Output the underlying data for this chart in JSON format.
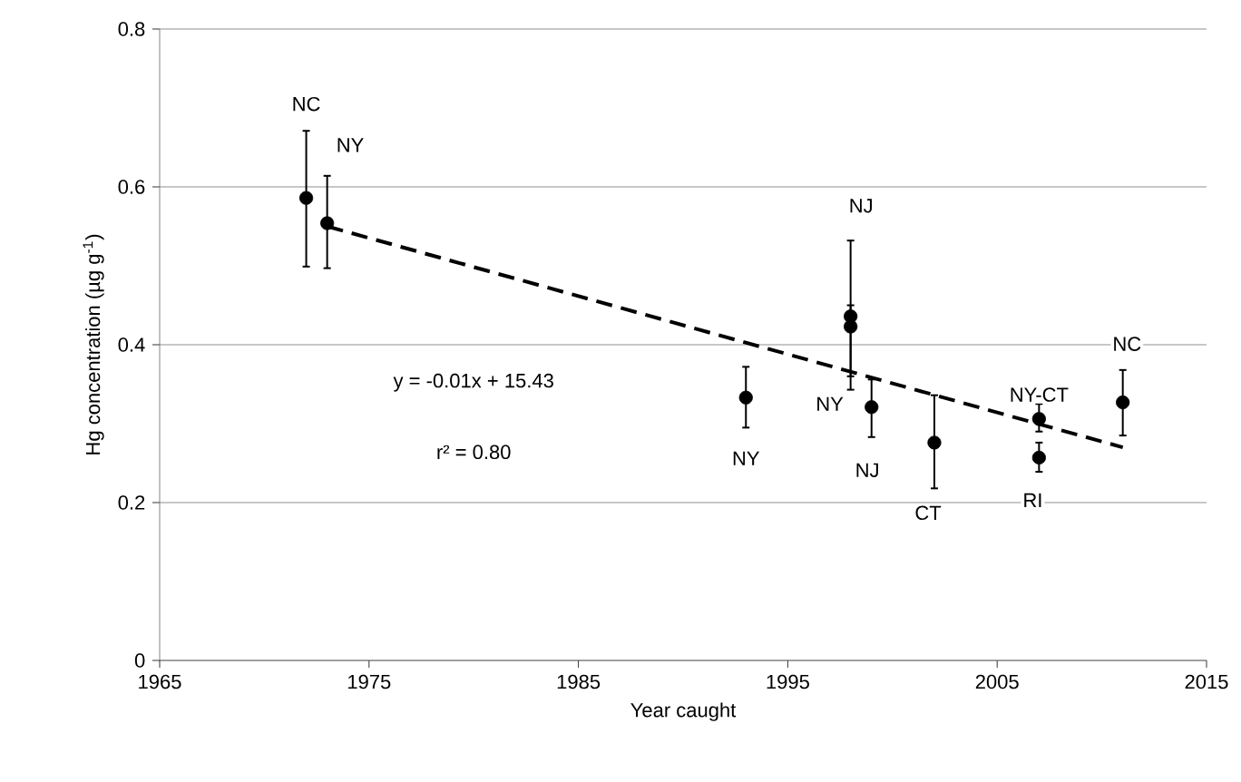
{
  "chart_data": {
    "type": "scatter",
    "xlabel": "Year caught",
    "ylabel": "Hg concentration (µg g$^{-1}$)",
    "xlim": [
      1965,
      2015
    ],
    "xticks": [
      1965,
      1975,
      1985,
      1995,
      2005,
      2015
    ],
    "ylim": [
      0,
      0.8
    ],
    "yticks": [
      0,
      0.2,
      0.4,
      0.6,
      0.8
    ],
    "grid": "y",
    "series": [
      {
        "color": "#000000",
        "marker": "circle",
        "x": [
          1972,
          1973,
          1993,
          1998,
          1998,
          1999,
          2002,
          2007,
          2007,
          2011
        ],
        "values": [
          0.586,
          0.554,
          0.333,
          0.436,
          0.423,
          0.321,
          0.276,
          0.306,
          0.257,
          0.327
        ],
        "errors": [
          [
            0.499,
            0.671
          ],
          [
            0.497,
            0.614
          ],
          [
            0.295,
            0.372
          ],
          [
            0.343,
            0.532
          ],
          [
            0.36,
            0.45
          ],
          [
            0.283,
            0.356
          ],
          [
            0.218,
            0.336
          ],
          [
            0.29,
            0.325
          ],
          [
            0.239,
            0.276
          ],
          [
            0.285,
            0.368
          ]
        ]
      },
      {
        "type": "line",
        "color": "#000000",
        "marker": "none",
        "line_style": "dashed",
        "x": [
          1973,
          2011
        ],
        "values": [
          0.55,
          0.27
        ]
      }
    ],
    "annotations": [
      {
        "text": "NC",
        "x": 1972,
        "y": 0.705
      },
      {
        "text": "NY",
        "x": 1974.1,
        "y": 0.653
      },
      {
        "text": "NY",
        "x": 1993,
        "y": 0.256
      },
      {
        "text": "NJ",
        "x": 1998.5,
        "y": 0.576
      },
      {
        "text": "NY",
        "x": 1997,
        "y": 0.325
      },
      {
        "text": "NJ",
        "x": 1998.8,
        "y": 0.241
      },
      {
        "text": "CT",
        "x": 2001.7,
        "y": 0.187
      },
      {
        "text": "NY-CT",
        "x": 2007,
        "y": 0.325
      },
      {
        "text": "RI",
        "x": 2006.7,
        "y": 0.203
      },
      {
        "text": "NC",
        "x": 2011.2,
        "y": 0.401
      },
      "y = -0.01x + 15.43",
      "r² = 0.80"
    ]
  }
}
